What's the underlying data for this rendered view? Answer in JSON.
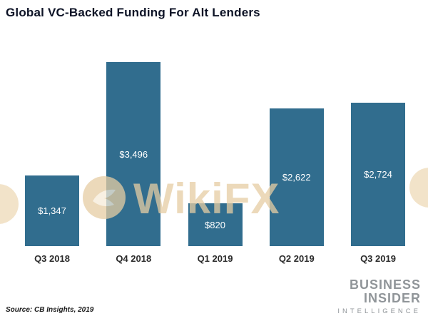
{
  "title": "Global VC-Backed Funding For Alt Lenders",
  "source": "Source: CB Insights, 2019",
  "watermark": {
    "text": "WikiFX"
  },
  "brand": {
    "line1": "BUSINESS",
    "line2": "INSIDER",
    "line3": "INTELLIGENCE"
  },
  "colors": {
    "bar": "#316d8e",
    "title": "#0d1326",
    "watermark": "#e6cda4",
    "brand": "#909599",
    "value_label": "#ffffff"
  },
  "chart_data": {
    "type": "bar",
    "title": "Global VC-Backed Funding For Alt Lenders",
    "categories": [
      "Q3 2018",
      "Q4 2018",
      "Q1 2019",
      "Q2 2019",
      "Q3 2019"
    ],
    "values": [
      1347,
      3496,
      820,
      2622,
      2724
    ],
    "value_labels": [
      "$1,347",
      "$3,496",
      "$820",
      "$2,622",
      "$2,724"
    ],
    "xlabel": "",
    "ylabel": "",
    "ylim": [
      0,
      3800
    ],
    "grid": false,
    "legend": false,
    "units": "USD millions"
  }
}
